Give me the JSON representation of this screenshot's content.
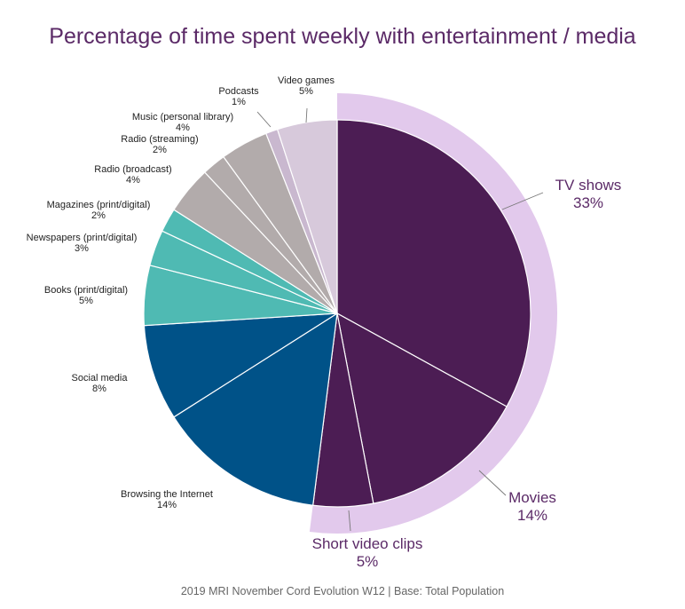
{
  "chart_data": {
    "type": "pie",
    "title": "Percentage of time spent weekly with entertainment / media",
    "footer": "2019 MRI November Cord Evolution W12  |  Base: Total Population",
    "slices": [
      {
        "label": "TV shows",
        "value_label": "33%",
        "value": 33,
        "color": "#4c1d54",
        "highlight": true
      },
      {
        "label": "Movies",
        "value_label": "14%",
        "value": 14,
        "color": "#4c1d54",
        "highlight": true
      },
      {
        "label": "Short video clips",
        "value_label": "5%",
        "value": 5,
        "color": "#4c1d54",
        "highlight": true
      },
      {
        "label": "Browsing the Internet",
        "value_label": "14%",
        "value": 14,
        "color": "#005288",
        "highlight": false
      },
      {
        "label": "Social media",
        "value_label": "8%",
        "value": 8,
        "color": "#005288",
        "highlight": false
      },
      {
        "label": "Books (print/digital)",
        "value_label": "5%",
        "value": 5,
        "color": "#4fbab3",
        "highlight": false
      },
      {
        "label": "Newspapers (print/digital)",
        "value_label": "3%",
        "value": 3,
        "color": "#4fbab3",
        "highlight": false
      },
      {
        "label": "Magazines (print/digital)",
        "value_label": "2%",
        "value": 2,
        "color": "#4fbab3",
        "highlight": false
      },
      {
        "label": "Radio (broadcast)",
        "value_label": "4%",
        "value": 4,
        "color": "#b2abab",
        "highlight": false
      },
      {
        "label": "Radio (streaming)",
        "value_label": "2%",
        "value": 2,
        "color": "#b2abab",
        "highlight": false
      },
      {
        "label": "Music (personal library)",
        "value_label": "4%",
        "value": 4,
        "color": "#b2abab",
        "highlight": false
      },
      {
        "label": "Podcasts",
        "value_label": "1%",
        "value": 1,
        "color": "#c9b8cf",
        "highlight": false
      },
      {
        "label": "Video games",
        "value_label": "5%",
        "value": 5,
        "color": "#d7c9db",
        "highlight": false
      }
    ],
    "highlight_ring_color": "#e2c9ec"
  }
}
